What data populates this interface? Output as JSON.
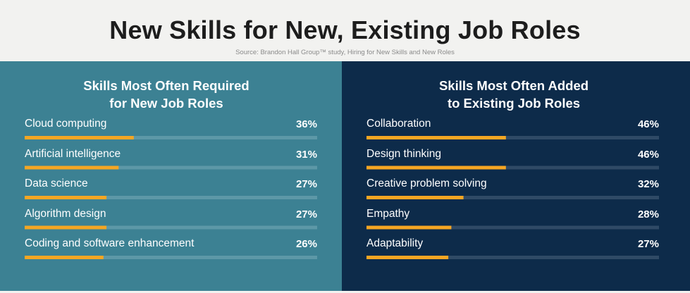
{
  "header": {
    "title": "New Skills for New, Existing Job Roles",
    "source": "Source: Brandon Hall Group™ study, Hiring for New Skills and New Roles"
  },
  "colors": {
    "left_panel": "#3c8193",
    "right_panel": "#0d2b4a",
    "bar_fill": "#f5a623",
    "left_track": "#5d98a7",
    "right_track": "#2f4a66"
  },
  "chart_data": [
    {
      "type": "bar",
      "title_line1": "Skills Most Often Required",
      "title_line2": "for New Job Roles",
      "categories": [
        "Cloud computing",
        "Artificial intelligence",
        "Data science",
        "Algorithm design",
        "Coding and software enhancement"
      ],
      "values": [
        36,
        31,
        27,
        27,
        26
      ],
      "value_labels": [
        "36%",
        "31%",
        "27%",
        "27%",
        "26%"
      ],
      "xlim": [
        0,
        100
      ]
    },
    {
      "type": "bar",
      "title_line1": "Skills Most Often Added",
      "title_line2": "to Existing Job Roles",
      "categories": [
        "Collaboration",
        "Design thinking",
        "Creative problem solving",
        "Empathy",
        "Adaptability"
      ],
      "values": [
        46,
        46,
        32,
        28,
        27
      ],
      "value_labels": [
        "46%",
        "46%",
        "32%",
        "28%",
        "27%"
      ],
      "xlim": [
        0,
        100
      ]
    }
  ]
}
